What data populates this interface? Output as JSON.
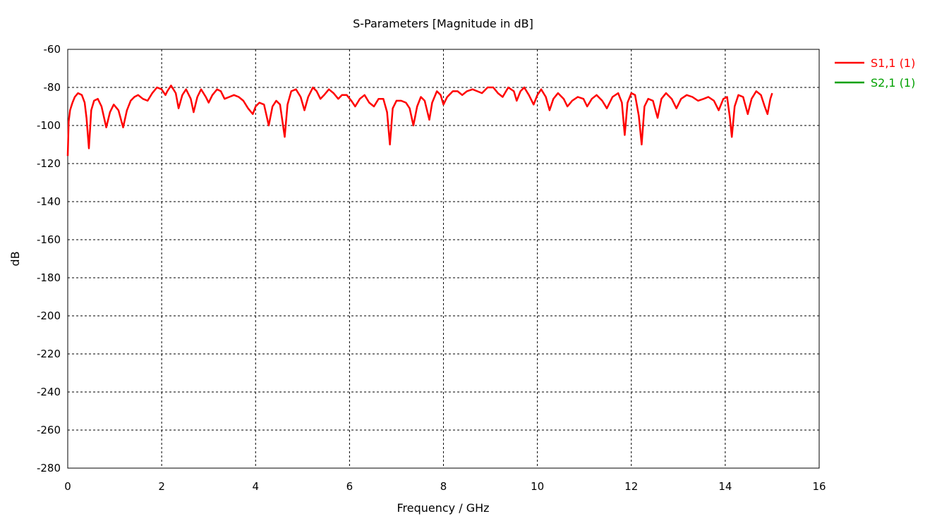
{
  "chart_data": {
    "type": "line",
    "title": "S-Parameters [Magnitude in dB]",
    "xlabel": "Frequency / GHz",
    "ylabel": "dB",
    "xlim": [
      0,
      16
    ],
    "ylim": [
      -280,
      -60
    ],
    "xticks": [
      "0",
      "2",
      "4",
      "6",
      "8",
      "10",
      "12",
      "14",
      "16"
    ],
    "yticks": [
      "-60",
      "-80",
      "-100",
      "-120",
      "-140",
      "-160",
      "-180",
      "-200",
      "-220",
      "-240",
      "-260",
      "-280"
    ],
    "grid": true,
    "legend_position": "right-top",
    "series": [
      {
        "name": "S1,1 (1)",
        "color": "#ff0000",
        "points": [
          [
            0.0,
            -116
          ],
          [
            0.02,
            -98
          ],
          [
            0.05,
            -92
          ],
          [
            0.1,
            -88
          ],
          [
            0.15,
            -85
          ],
          [
            0.22,
            -83
          ],
          [
            0.3,
            -84
          ],
          [
            0.36,
            -88
          ],
          [
            0.4,
            -96
          ],
          [
            0.45,
            -112
          ],
          [
            0.5,
            -92
          ],
          [
            0.56,
            -87
          ],
          [
            0.64,
            -86
          ],
          [
            0.72,
            -90
          ],
          [
            0.82,
            -101
          ],
          [
            0.9,
            -93
          ],
          [
            0.98,
            -89
          ],
          [
            1.08,
            -92
          ],
          [
            1.18,
            -101
          ],
          [
            1.26,
            -92
          ],
          [
            1.34,
            -87
          ],
          [
            1.42,
            -85
          ],
          [
            1.5,
            -84
          ],
          [
            1.6,
            -86
          ],
          [
            1.7,
            -87
          ],
          [
            1.8,
            -83
          ],
          [
            1.9,
            -80
          ],
          [
            2.0,
            -81
          ],
          [
            2.08,
            -84
          ],
          [
            2.12,
            -82
          ],
          [
            2.2,
            -79
          ],
          [
            2.3,
            -83
          ],
          [
            2.36,
            -91
          ],
          [
            2.44,
            -84
          ],
          [
            2.52,
            -81
          ],
          [
            2.62,
            -86
          ],
          [
            2.68,
            -93
          ],
          [
            2.76,
            -85
          ],
          [
            2.84,
            -81
          ],
          [
            2.94,
            -85
          ],
          [
            3.0,
            -88
          ],
          [
            3.08,
            -84
          ],
          [
            3.18,
            -81
          ],
          [
            3.26,
            -82
          ],
          [
            3.34,
            -86
          ],
          [
            3.44,
            -85
          ],
          [
            3.54,
            -84
          ],
          [
            3.64,
            -85
          ],
          [
            3.74,
            -87
          ],
          [
            3.84,
            -91
          ],
          [
            3.94,
            -94
          ],
          [
            4.0,
            -90
          ],
          [
            4.08,
            -88
          ],
          [
            4.18,
            -89
          ],
          [
            4.28,
            -100
          ],
          [
            4.36,
            -90
          ],
          [
            4.44,
            -87
          ],
          [
            4.52,
            -89
          ],
          [
            4.62,
            -106
          ],
          [
            4.68,
            -89
          ],
          [
            4.76,
            -82
          ],
          [
            4.86,
            -81
          ],
          [
            4.96,
            -85
          ],
          [
            5.04,
            -92
          ],
          [
            5.12,
            -85
          ],
          [
            5.22,
            -80
          ],
          [
            5.3,
            -82
          ],
          [
            5.38,
            -86
          ],
          [
            5.46,
            -84
          ],
          [
            5.56,
            -81
          ],
          [
            5.66,
            -83
          ],
          [
            5.76,
            -86
          ],
          [
            5.84,
            -84
          ],
          [
            5.94,
            -84
          ],
          [
            6.04,
            -87
          ],
          [
            6.12,
            -90
          ],
          [
            6.22,
            -86
          ],
          [
            6.32,
            -84
          ],
          [
            6.42,
            -88
          ],
          [
            6.52,
            -90
          ],
          [
            6.62,
            -86
          ],
          [
            6.72,
            -86
          ],
          [
            6.8,
            -93
          ],
          [
            6.86,
            -110
          ],
          [
            6.92,
            -91
          ],
          [
            7.0,
            -87
          ],
          [
            7.1,
            -87
          ],
          [
            7.2,
            -88
          ],
          [
            7.28,
            -91
          ],
          [
            7.36,
            -100
          ],
          [
            7.44,
            -90
          ],
          [
            7.52,
            -85
          ],
          [
            7.6,
            -87
          ],
          [
            7.7,
            -97
          ],
          [
            7.76,
            -88
          ],
          [
            7.86,
            -82
          ],
          [
            7.94,
            -84
          ],
          [
            8.0,
            -89
          ],
          [
            8.08,
            -85
          ],
          [
            8.2,
            -82
          ],
          [
            8.3,
            -82
          ],
          [
            8.4,
            -84
          ],
          [
            8.5,
            -82
          ],
          [
            8.62,
            -81
          ],
          [
            8.72,
            -82
          ],
          [
            8.82,
            -83
          ],
          [
            8.94,
            -80
          ],
          [
            9.06,
            -80
          ],
          [
            9.16,
            -83
          ],
          [
            9.26,
            -85
          ],
          [
            9.38,
            -80
          ],
          [
            9.5,
            -82
          ],
          [
            9.56,
            -87
          ],
          [
            9.64,
            -82
          ],
          [
            9.72,
            -80
          ],
          [
            9.82,
            -84
          ],
          [
            9.92,
            -89
          ],
          [
            10.0,
            -84
          ],
          [
            10.08,
            -81
          ],
          [
            10.18,
            -85
          ],
          [
            10.26,
            -92
          ],
          [
            10.34,
            -86
          ],
          [
            10.44,
            -83
          ],
          [
            10.56,
            -86
          ],
          [
            10.64,
            -90
          ],
          [
            10.74,
            -87
          ],
          [
            10.86,
            -85
          ],
          [
            10.98,
            -86
          ],
          [
            11.06,
            -90
          ],
          [
            11.16,
            -86
          ],
          [
            11.26,
            -84
          ],
          [
            11.38,
            -87
          ],
          [
            11.48,
            -91
          ],
          [
            11.6,
            -85
          ],
          [
            11.72,
            -83
          ],
          [
            11.8,
            -88
          ],
          [
            11.86,
            -105
          ],
          [
            11.92,
            -88
          ],
          [
            12.0,
            -83
          ],
          [
            12.08,
            -84
          ],
          [
            12.16,
            -95
          ],
          [
            12.22,
            -110
          ],
          [
            12.28,
            -90
          ],
          [
            12.36,
            -86
          ],
          [
            12.46,
            -87
          ],
          [
            12.56,
            -96
          ],
          [
            12.64,
            -86
          ],
          [
            12.74,
            -83
          ],
          [
            12.86,
            -86
          ],
          [
            12.96,
            -91
          ],
          [
            13.06,
            -86
          ],
          [
            13.18,
            -84
          ],
          [
            13.3,
            -85
          ],
          [
            13.42,
            -87
          ],
          [
            13.54,
            -86
          ],
          [
            13.64,
            -85
          ],
          [
            13.76,
            -87
          ],
          [
            13.86,
            -92
          ],
          [
            13.96,
            -86
          ],
          [
            14.04,
            -85
          ],
          [
            14.1,
            -96
          ],
          [
            14.14,
            -106
          ],
          [
            14.2,
            -90
          ],
          [
            14.28,
            -84
          ],
          [
            14.38,
            -85
          ],
          [
            14.48,
            -94
          ],
          [
            14.56,
            -86
          ],
          [
            14.66,
            -82
          ],
          [
            14.76,
            -84
          ],
          [
            14.84,
            -90
          ],
          [
            14.9,
            -94
          ],
          [
            14.96,
            -86
          ],
          [
            15.0,
            -83
          ]
        ]
      },
      {
        "name": "S2,1 (1)",
        "color": "#00a000",
        "points": []
      }
    ]
  }
}
